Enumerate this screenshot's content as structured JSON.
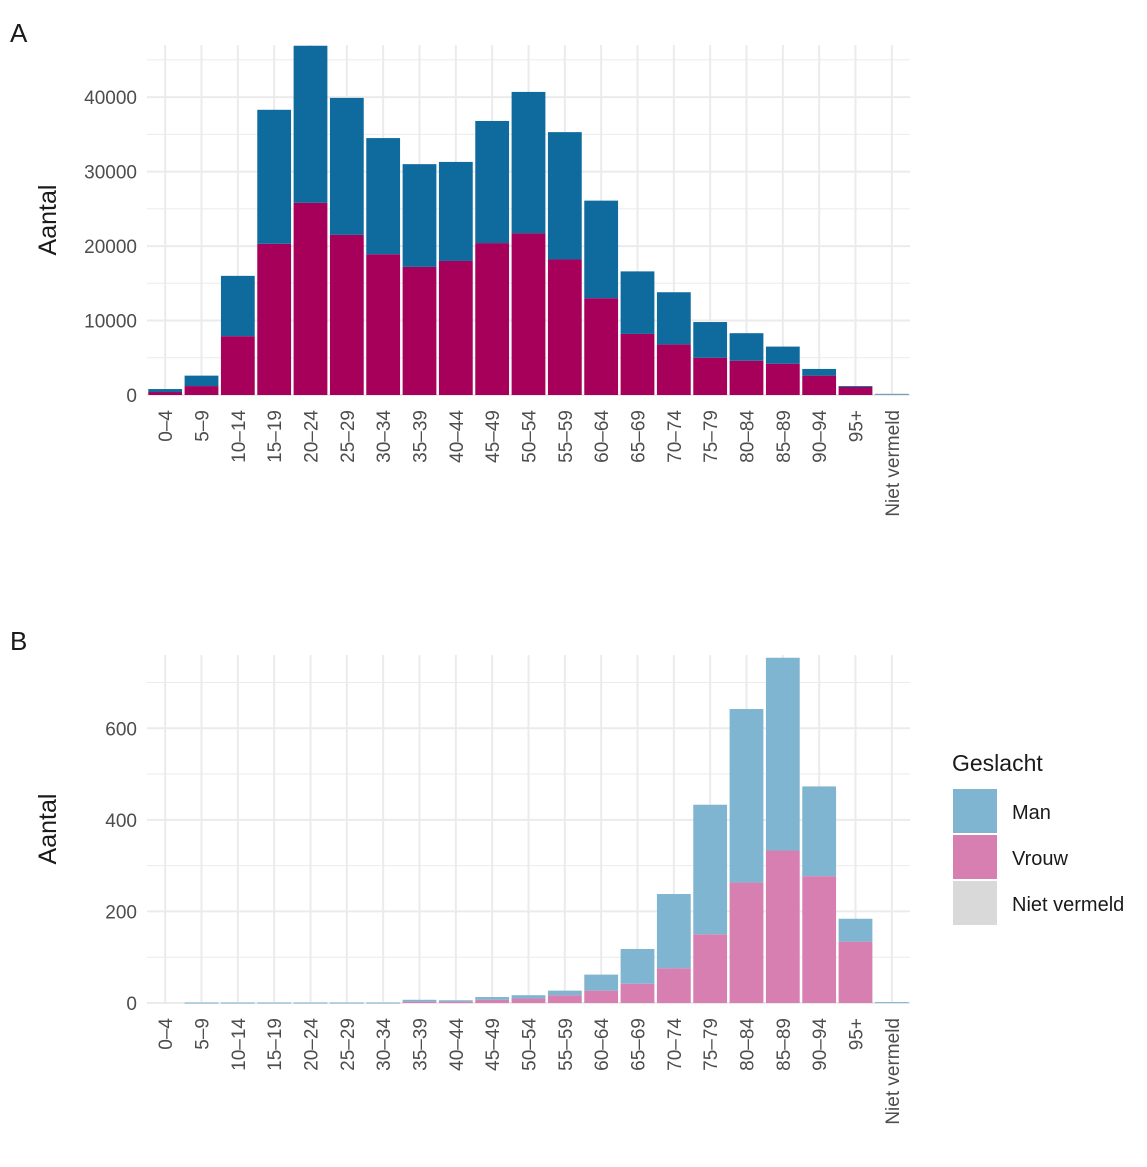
{
  "colors": {
    "man_a": "#0f6b9e",
    "vrouw_a": "#a6005a",
    "niet_a": "#d3d3d3",
    "man_b": "#7fb5d1",
    "vrouw_b": "#d67fb0",
    "niet_b": "#d9d9d9",
    "grid": "#ebebeb"
  },
  "legend": {
    "title": "Geslacht",
    "items": [
      {
        "label": "Man",
        "color": "#7fb5d1"
      },
      {
        "label": "Vrouw",
        "color": "#d67fb0"
      },
      {
        "label": "Niet vermeld",
        "color": "#d9d9d9"
      }
    ]
  },
  "chart_data": [
    {
      "panel": "A",
      "type": "bar",
      "stacked": true,
      "ylabel": "Aantal",
      "ylim": [
        0,
        47000
      ],
      "yticks": [
        0,
        10000,
        20000,
        30000,
        40000
      ],
      "categories": [
        "0–4",
        "5–9",
        "10–14",
        "15–19",
        "20–24",
        "25–29",
        "30–34",
        "35–39",
        "40–44",
        "45–49",
        "50–54",
        "55–59",
        "60–64",
        "65–69",
        "70–74",
        "75–79",
        "80–84",
        "85–89",
        "90–94",
        "95+",
        "Niet vermeld"
      ],
      "series": [
        {
          "name": "Vrouw",
          "color_key": "vrouw_a",
          "values": [
            400,
            1200,
            7900,
            20300,
            25800,
            21500,
            18900,
            17200,
            18000,
            20400,
            21700,
            18200,
            13000,
            8200,
            6800,
            5000,
            4600,
            4200,
            2600,
            1100,
            0
          ]
        },
        {
          "name": "Man",
          "color_key": "man_a",
          "values": [
            400,
            1400,
            8100,
            18000,
            21100,
            18400,
            15600,
            13800,
            13300,
            16400,
            19000,
            17100,
            13100,
            8400,
            7000,
            4800,
            3700,
            2300,
            900,
            100,
            150
          ]
        },
        {
          "name": "Niet vermeld",
          "color_key": "niet_a",
          "values": [
            0,
            0,
            0,
            0,
            0,
            0,
            0,
            0,
            0,
            0,
            0,
            0,
            0,
            0,
            0,
            0,
            0,
            0,
            0,
            0,
            50
          ]
        }
      ]
    },
    {
      "panel": "B",
      "type": "bar",
      "stacked": true,
      "ylabel": "Aantal",
      "ylim": [
        0,
        760
      ],
      "yticks": [
        0,
        200,
        400,
        600
      ],
      "categories": [
        "0–4",
        "5–9",
        "10–14",
        "15–19",
        "20–24",
        "25–29",
        "30–34",
        "35–39",
        "40–44",
        "45–49",
        "50–54",
        "55–59",
        "60–64",
        "65–69",
        "70–74",
        "75–79",
        "80–84",
        "85–89",
        "90–94",
        "95+",
        "Niet vermeld"
      ],
      "series": [
        {
          "name": "Vrouw",
          "color_key": "vrouw_b",
          "values": [
            0,
            0,
            0,
            0,
            0,
            0,
            0,
            3,
            3,
            7,
            10,
            17,
            27,
            42,
            76,
            150,
            263,
            333,
            277,
            134,
            0
          ]
        },
        {
          "name": "Man",
          "color_key": "man_b",
          "values": [
            0,
            1,
            1,
            1,
            1,
            1,
            1,
            4,
            3,
            6,
            7,
            10,
            35,
            76,
            162,
            283,
            379,
            421,
            196,
            50,
            2
          ]
        },
        {
          "name": "Niet vermeld",
          "color_key": "niet_b",
          "values": [
            0,
            0,
            0,
            0,
            0,
            0,
            0,
            0,
            0,
            0,
            0,
            0,
            0,
            0,
            0,
            0,
            0,
            0,
            0,
            0,
            0
          ]
        }
      ]
    }
  ]
}
